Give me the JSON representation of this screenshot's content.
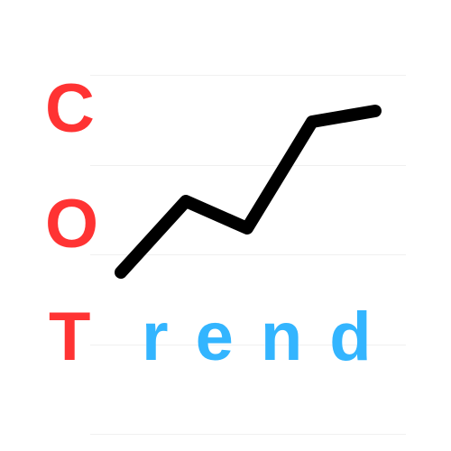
{
  "logo": {
    "letter_c": "C",
    "letter_o": "O",
    "letter_t": "T",
    "word_rest": "rend",
    "accent_red": "#ff3333",
    "accent_blue": "#33b5ff",
    "line_color": "#000000",
    "icon": "trend-line-icon"
  }
}
